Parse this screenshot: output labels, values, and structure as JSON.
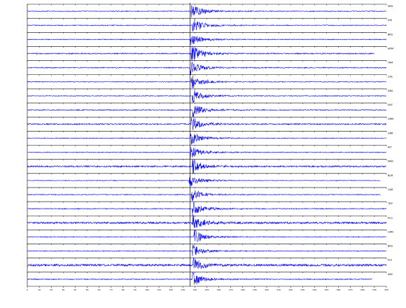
{
  "chart_data": {
    "type": "line",
    "title": "",
    "xlabel": "",
    "ylabel": "",
    "grid": false,
    "legend": "none",
    "trace_color": "#0000ff",
    "axis_color": "#000000",
    "marker_color": "#000000",
    "xlim": [
      0,
      300
    ],
    "x_ticks": [
      0,
      10,
      20,
      30,
      40,
      50,
      60,
      70,
      80,
      90,
      100,
      110,
      120,
      130,
      140,
      150,
      160,
      170,
      180,
      190,
      200,
      210,
      220,
      230,
      240,
      250,
      260,
      270,
      280,
      290,
      300
    ],
    "event_marker_x": 136,
    "series": [
      {
        "label": "SEN",
        "arrival": 137,
        "amp": 0.9,
        "noise": 0.05,
        "end": 300
      },
      {
        "label": "DIS",
        "arrival": 138,
        "amp": 0.85,
        "noise": 0.05,
        "end": 300
      },
      {
        "label": "BRS",
        "arrival": 136,
        "amp": 0.75,
        "noise": 0.05,
        "end": 300
      },
      {
        "label": "ARM",
        "arrival": 137,
        "amp": 1.0,
        "noise": 0.07,
        "end": 290
      },
      {
        "label": "TAM",
        "arrival": 136,
        "amp": 0.85,
        "noise": 0.06,
        "end": 300
      },
      {
        "label": "CPS",
        "arrival": 137,
        "amp": 0.8,
        "noise": 0.05,
        "end": 300
      },
      {
        "label": "DRS",
        "arrival": 138,
        "amp": 0.8,
        "noise": 0.05,
        "end": 300
      },
      {
        "label": "ENT",
        "arrival": 138,
        "amp": 0.9,
        "noise": 0.06,
        "end": 300
      },
      {
        "label": "GRM",
        "arrival": 137,
        "amp": 0.85,
        "noise": 0.08,
        "end": 300
      },
      {
        "label": "GRR",
        "arrival": 136,
        "amp": 0.85,
        "noise": 0.05,
        "end": 300
      },
      {
        "label": "KIT",
        "arrival": 136,
        "amp": 0.8,
        "noise": 0.05,
        "end": 300
      },
      {
        "label": "MAR",
        "arrival": 138,
        "amp": 0.85,
        "noise": 0.1,
        "end": 300
      },
      {
        "label": "BUR",
        "arrival": 135,
        "amp": 0.8,
        "noise": 0.04,
        "end": 295
      },
      {
        "label": "GAR",
        "arrival": 137,
        "amp": 0.75,
        "noise": 0.05,
        "end": 295
      },
      {
        "label": "TRP",
        "arrival": 138,
        "amp": 0.85,
        "noise": 0.06,
        "end": 300
      },
      {
        "label": "ELG",
        "arrival": 138,
        "amp": 0.9,
        "noise": 0.12,
        "end": 300
      },
      {
        "label": "GRN",
        "arrival": 139,
        "amp": 0.8,
        "noise": 0.05,
        "end": 300
      },
      {
        "label": "BKS",
        "arrival": 138,
        "amp": 0.75,
        "noise": 0.05,
        "end": 300
      },
      {
        "label": "FLV",
        "arrival": 138,
        "amp": 0.95,
        "noise": 0.14,
        "end": 300
      },
      {
        "label": "ANC",
        "arrival": 138,
        "amp": 0.85,
        "noise": 0.06,
        "end": 288
      }
    ]
  }
}
